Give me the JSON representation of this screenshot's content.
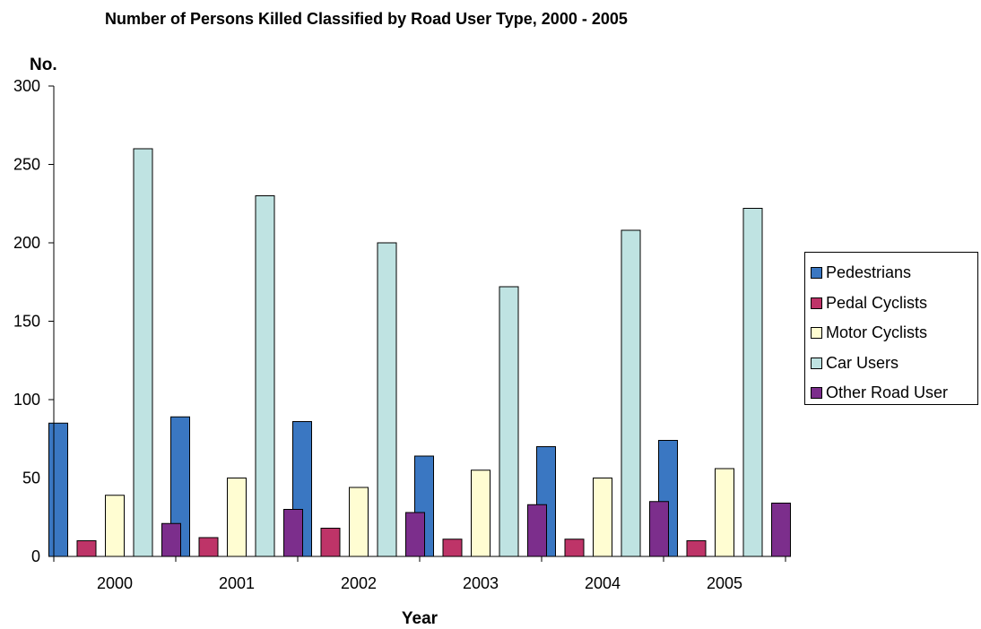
{
  "chart_data": {
    "type": "bar",
    "title": "Number of Persons Killed Classified by Road User Type, 2000 - 2005",
    "xlabel": "Year",
    "ylabel": "No.",
    "ylim": [
      0,
      300
    ],
    "yticks": [
      0,
      50,
      100,
      150,
      200,
      250,
      300
    ],
    "categories": [
      "2000",
      "2001",
      "2002",
      "2003",
      "2004",
      "2005"
    ],
    "grid": false,
    "legend_position": "right",
    "series": [
      {
        "name": "Pedestrians",
        "color": "#3A77C2",
        "values": [
          85,
          89,
          86,
          64,
          70,
          74
        ]
      },
      {
        "name": "Pedal Cyclists",
        "color": "#BE3468",
        "values": [
          10,
          12,
          18,
          11,
          11,
          10
        ]
      },
      {
        "name": "Motor Cyclists",
        "color": "#FFFDD2",
        "values": [
          39,
          50,
          44,
          55,
          50,
          56
        ]
      },
      {
        "name": "Car Users",
        "color": "#BFE3E2",
        "values": [
          260,
          230,
          200,
          172,
          208,
          222
        ]
      },
      {
        "name": "Other Road User",
        "color": "#7C2E8C",
        "values": [
          21,
          30,
          28,
          33,
          35,
          34
        ]
      }
    ]
  }
}
